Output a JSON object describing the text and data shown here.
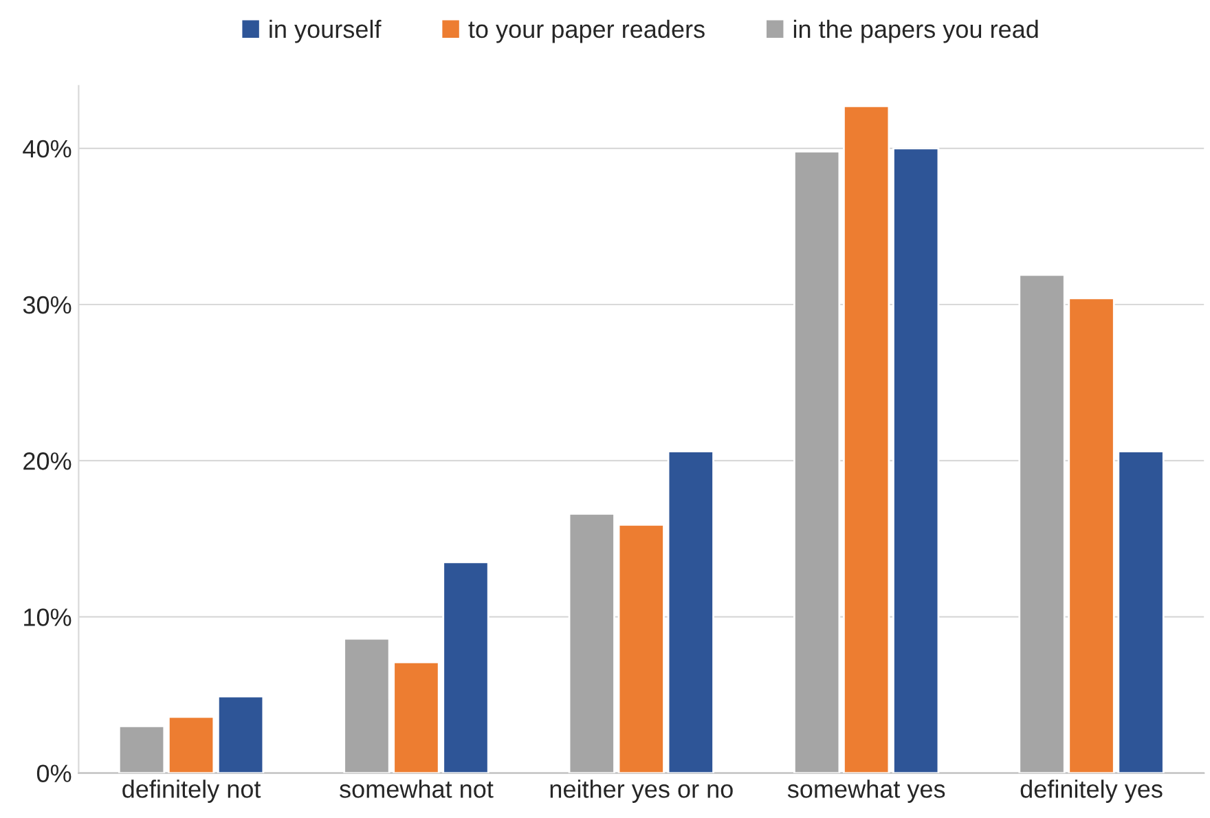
{
  "chart_data": {
    "type": "bar",
    "categories": [
      "definitely not",
      "somewhat not",
      "neither yes or no",
      "somewhat yes",
      "definitely yes"
    ],
    "series": [
      {
        "name": "in yourself",
        "color": "#2e5597",
        "values": [
          4.9,
          13.5,
          20.6,
          40.0,
          20.6
        ]
      },
      {
        "name": "to your paper readers",
        "color": "#ed7d31",
        "values": [
          3.6,
          7.1,
          15.9,
          42.7,
          30.4
        ]
      },
      {
        "name": "in the papers you read",
        "color": "#a5a5a5",
        "values": [
          3.0,
          8.6,
          16.6,
          39.8,
          31.9
        ]
      }
    ],
    "ylim": [
      0,
      44
    ],
    "yticks": [
      {
        "value": 0,
        "label": "0%"
      },
      {
        "value": 10,
        "label": "10%"
      },
      {
        "value": 20,
        "label": "20%"
      },
      {
        "value": 30,
        "label": "30%"
      },
      {
        "value": 40,
        "label": "40%"
      }
    ],
    "grid": "y",
    "legend": "top"
  }
}
